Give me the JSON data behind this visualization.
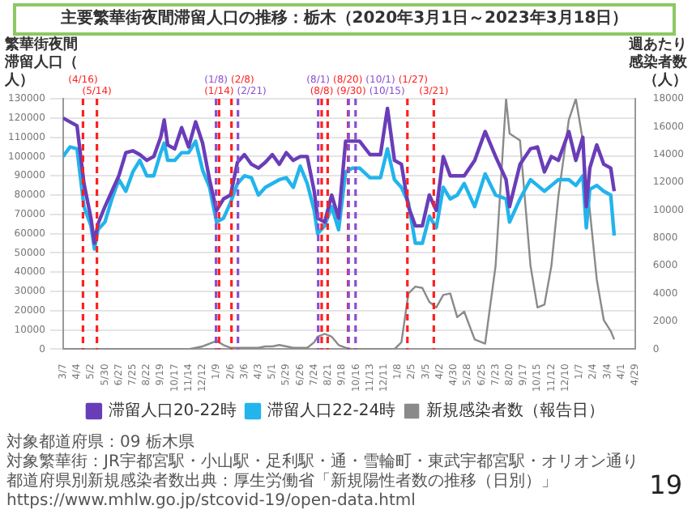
{
  "chart_data": {
    "type": "line",
    "title": "主要繁華街夜間滞留人口の推移：栃木（2020年3月1日～2023年3月18日）",
    "ylabel": "繁華街夜間滞留人口（人）",
    "y2label": "週あたり感染者数（人）",
    "x": [
      "2020-03-07",
      "2020-03-21",
      "2020-04-04",
      "2020-04-18",
      "2020-05-02",
      "2020-05-09",
      "2020-05-16",
      "2020-05-30",
      "2020-06-13",
      "2020-06-27",
      "2020-07-11",
      "2020-07-25",
      "2020-08-08",
      "2020-08-22",
      "2020-09-05",
      "2020-09-19",
      "2020-09-26",
      "2020-10-03",
      "2020-10-17",
      "2020-10-31",
      "2020-11-14",
      "2020-11-28",
      "2020-12-12",
      "2020-12-26",
      "2021-01-09",
      "2021-01-23",
      "2021-02-06",
      "2021-02-20",
      "2021-03-06",
      "2021-03-20",
      "2021-04-03",
      "2021-04-17",
      "2021-05-01",
      "2021-05-15",
      "2021-05-29",
      "2021-06-12",
      "2021-06-26",
      "2021-07-10",
      "2021-07-24",
      "2021-07-31",
      "2021-08-14",
      "2021-08-28",
      "2021-09-11",
      "2021-09-25",
      "2021-10-09",
      "2021-10-23",
      "2021-11-13",
      "2021-12-04",
      "2021-12-18",
      "2022-01-01",
      "2022-01-15",
      "2022-01-29",
      "2022-02-12",
      "2022-02-26",
      "2022-03-12",
      "2022-03-26",
      "2022-04-09",
      "2022-04-23",
      "2022-05-07",
      "2022-05-21",
      "2022-06-11",
      "2022-07-02",
      "2022-07-23",
      "2022-08-13",
      "2022-08-20",
      "2022-09-10",
      "2022-10-01",
      "2022-10-15",
      "2022-10-29",
      "2022-11-12",
      "2022-11-26",
      "2022-12-17",
      "2022-12-31",
      "2023-01-14",
      "2023-01-21",
      "2023-01-28",
      "2023-02-11",
      "2023-02-25",
      "2023-03-11",
      "2023-03-18"
    ],
    "series": [
      {
        "name": "滞留人口20-22時",
        "color": "#6a3db8",
        "values": [
          120000,
          118000,
          116000,
          86000,
          68000,
          55000,
          65000,
          74000,
          82000,
          90000,
          102000,
          103000,
          101000,
          98000,
          100000,
          110000,
          119000,
          106000,
          104000,
          115000,
          105000,
          118000,
          107000,
          88000,
          72000,
          78000,
          80000,
          97000,
          101000,
          96000,
          94000,
          97000,
          101000,
          96000,
          102000,
          98000,
          100000,
          100000,
          82000,
          68000,
          66000,
          80000,
          68000,
          108000,
          108000,
          108000,
          101000,
          101000,
          125000,
          98000,
          96000,
          74000,
          64000,
          64000,
          80000,
          72000,
          100000,
          90000,
          90000,
          90000,
          98000,
          113000,
          100000,
          88000,
          74000,
          96000,
          104000,
          105000,
          92000,
          100000,
          98000,
          113000,
          98000,
          110000,
          74000,
          94000,
          106000,
          96000,
          94000,
          82000
        ]
      },
      {
        "name": "滞留人口22-24時",
        "color": "#22b4ec",
        "values": [
          100000,
          105000,
          104000,
          74000,
          64000,
          52000,
          62000,
          66000,
          78000,
          88000,
          82000,
          92000,
          98000,
          90000,
          90000,
          102000,
          107000,
          98000,
          98000,
          102000,
          102000,
          108000,
          93000,
          84000,
          66000,
          68000,
          76000,
          86000,
          90000,
          89000,
          80000,
          84000,
          86000,
          88000,
          89000,
          84000,
          95000,
          86000,
          72000,
          60000,
          64000,
          74000,
          62000,
          92000,
          94000,
          94000,
          89000,
          89000,
          104000,
          88000,
          84000,
          76000,
          55000,
          55000,
          69000,
          63000,
          84000,
          78000,
          80000,
          86000,
          74000,
          91000,
          80000,
          78000,
          66000,
          78000,
          88000,
          85000,
          82000,
          85000,
          88000,
          88000,
          85000,
          90000,
          63000,
          83000,
          85000,
          82000,
          80000,
          59000
        ]
      },
      {
        "name": "新規感染者数（報告日）",
        "color": "#8a8a8a",
        "axis": "y2",
        "values": [
          0,
          0,
          0,
          0,
          0,
          0,
          0,
          0,
          0,
          0,
          0,
          0,
          0,
          0,
          0,
          0,
          0,
          0,
          0,
          0,
          0,
          100,
          200,
          400,
          600,
          300,
          100,
          100,
          100,
          100,
          100,
          200,
          200,
          300,
          200,
          100,
          100,
          100,
          500,
          900,
          1100,
          900,
          300,
          100,
          0,
          0,
          0,
          0,
          0,
          0,
          500,
          4000,
          4500,
          4400,
          3400,
          3000,
          3900,
          4000,
          2300,
          2700,
          700,
          400,
          6000,
          18000,
          15500,
          15000,
          6000,
          3000,
          3200,
          6000,
          11000,
          16500,
          18000,
          15000,
          12000,
          10000,
          5000,
          2100,
          1300,
          700
        ]
      }
    ],
    "xlim": [
      "2020-03-07",
      "2023-04-29"
    ],
    "xticks": [
      {
        "value": "2020-03-07",
        "label": "3/7"
      },
      {
        "value": "2020-04-04",
        "label": "4/4"
      },
      {
        "value": "2020-05-02",
        "label": "5/2"
      },
      {
        "value": "2020-05-30",
        "label": "5/30"
      },
      {
        "value": "2020-06-27",
        "label": "6/27"
      },
      {
        "value": "2020-07-25",
        "label": "7/25"
      },
      {
        "value": "2020-08-22",
        "label": "8/22"
      },
      {
        "value": "2020-09-19",
        "label": "9/19"
      },
      {
        "value": "2020-10-17",
        "label": "10/17"
      },
      {
        "value": "2020-11-14",
        "label": "11/14"
      },
      {
        "value": "2020-12-12",
        "label": "12/12"
      },
      {
        "value": "2021-01-09",
        "label": "1/9"
      },
      {
        "value": "2021-02-06",
        "label": "2/6"
      },
      {
        "value": "2021-03-06",
        "label": "3/6"
      },
      {
        "value": "2021-04-03",
        "label": "4/3"
      },
      {
        "value": "2021-05-01",
        "label": "5/1"
      },
      {
        "value": "2021-05-29",
        "label": "5/29"
      },
      {
        "value": "2021-06-26",
        "label": "6/26"
      },
      {
        "value": "2021-07-24",
        "label": "7/24"
      },
      {
        "value": "2021-08-21",
        "label": "8/21"
      },
      {
        "value": "2021-09-18",
        "label": "9/18"
      },
      {
        "value": "2021-10-16",
        "label": "10/16"
      },
      {
        "value": "2021-11-13",
        "label": "11/13"
      },
      {
        "value": "2021-12-11",
        "label": "12/11"
      },
      {
        "value": "2022-01-08",
        "label": "1/8"
      },
      {
        "value": "2022-02-05",
        "label": "2/5"
      },
      {
        "value": "2022-03-05",
        "label": "3/5"
      },
      {
        "value": "2022-04-02",
        "label": "4/2"
      },
      {
        "value": "2022-04-30",
        "label": "4/30"
      },
      {
        "value": "2022-05-28",
        "label": "5/28"
      },
      {
        "value": "2022-06-25",
        "label": "6/25"
      },
      {
        "value": "2022-07-23",
        "label": "7/23"
      },
      {
        "value": "2022-08-20",
        "label": "8/20"
      },
      {
        "value": "2022-09-17",
        "label": "9/17"
      },
      {
        "value": "2022-10-15",
        "label": "10/15"
      },
      {
        "value": "2022-11-12",
        "label": "11/12"
      },
      {
        "value": "2022-12-10",
        "label": "12/10"
      },
      {
        "value": "2023-01-07",
        "label": "1/7"
      },
      {
        "value": "2023-02-04",
        "label": "2/4"
      },
      {
        "value": "2023-03-04",
        "label": "3/4"
      },
      {
        "value": "2023-04-01",
        "label": "4/1"
      },
      {
        "value": "2023-04-29",
        "label": "4/29"
      }
    ],
    "ylim": [
      0,
      130000
    ],
    "yticks": [
      0,
      10000,
      20000,
      30000,
      40000,
      50000,
      60000,
      70000,
      80000,
      90000,
      100000,
      110000,
      120000,
      130000
    ],
    "y2lim": [
      0,
      18000
    ],
    "y2ticks": [
      0,
      2000,
      4000,
      6000,
      8000,
      10000,
      12000,
      14000,
      16000,
      18000
    ],
    "ref_lines": [
      {
        "axis": "x",
        "value": "2020-04-16",
        "label": "(4/16)",
        "color": "#ff2020",
        "line_style": "dashed"
      },
      {
        "axis": "x",
        "value": "2020-05-14",
        "label": "(5/14)",
        "color": "#ff2020",
        "line_style": "dashed"
      },
      {
        "axis": "x",
        "value": "2021-01-08",
        "label": "(1/8)",
        "color": "#8a4fd0",
        "line_style": "dashed"
      },
      {
        "axis": "x",
        "value": "2021-01-14",
        "label": "(1/14)",
        "color": "#ff2020",
        "line_style": "dashed"
      },
      {
        "axis": "x",
        "value": "2021-02-08",
        "label": "(2/8)",
        "color": "#ff2020",
        "line_style": "dashed"
      },
      {
        "axis": "x",
        "value": "2021-02-21",
        "label": "(2/21)",
        "color": "#8a4fd0",
        "line_style": "dashed"
      },
      {
        "axis": "x",
        "value": "2021-08-01",
        "label": "(8/1)",
        "color": "#8a4fd0",
        "line_style": "dashed"
      },
      {
        "axis": "x",
        "value": "2021-08-08",
        "label": "(8/8)",
        "color": "#ff2020",
        "line_style": "dashed"
      },
      {
        "axis": "x",
        "value": "2021-08-20",
        "label": "(8/20)",
        "color": "#ff2020",
        "line_style": "dashed"
      },
      {
        "axis": "x",
        "value": "2021-09-30",
        "label": "(9/30)",
        "color": "#ff2020",
        "line_style": "dashed"
      },
      {
        "axis": "x",
        "value": "2021-10-01",
        "label": "(10/1)",
        "color": "#8a4fd0",
        "line_style": "dashed"
      },
      {
        "axis": "x",
        "value": "2021-10-15",
        "label": "(10/15)",
        "color": "#8a4fd0",
        "line_style": "dashed"
      },
      {
        "axis": "x",
        "value": "2022-01-27",
        "label": "(1/27)",
        "color": "#ff2020",
        "line_style": "dashed"
      },
      {
        "axis": "x",
        "value": "2022-03-21",
        "label": "(3/21)",
        "color": "#ff2020",
        "line_style": "dashed"
      }
    ],
    "grid": "y",
    "legend": "bottom",
    "annotations": [
      "対象都道府県：09 栃木県",
      "対象繁華街：JR宇都宮駅・小山駅・足利駅・通・雪輪町・東武宇都宮駅・オリオン通り",
      "都道府県別新規感染者数出典：厚生労働省「新規陽性者数の推移（日別）」https://www.mhlw.go.jp/stcovid-19/open-data.html",
      "19"
    ]
  }
}
